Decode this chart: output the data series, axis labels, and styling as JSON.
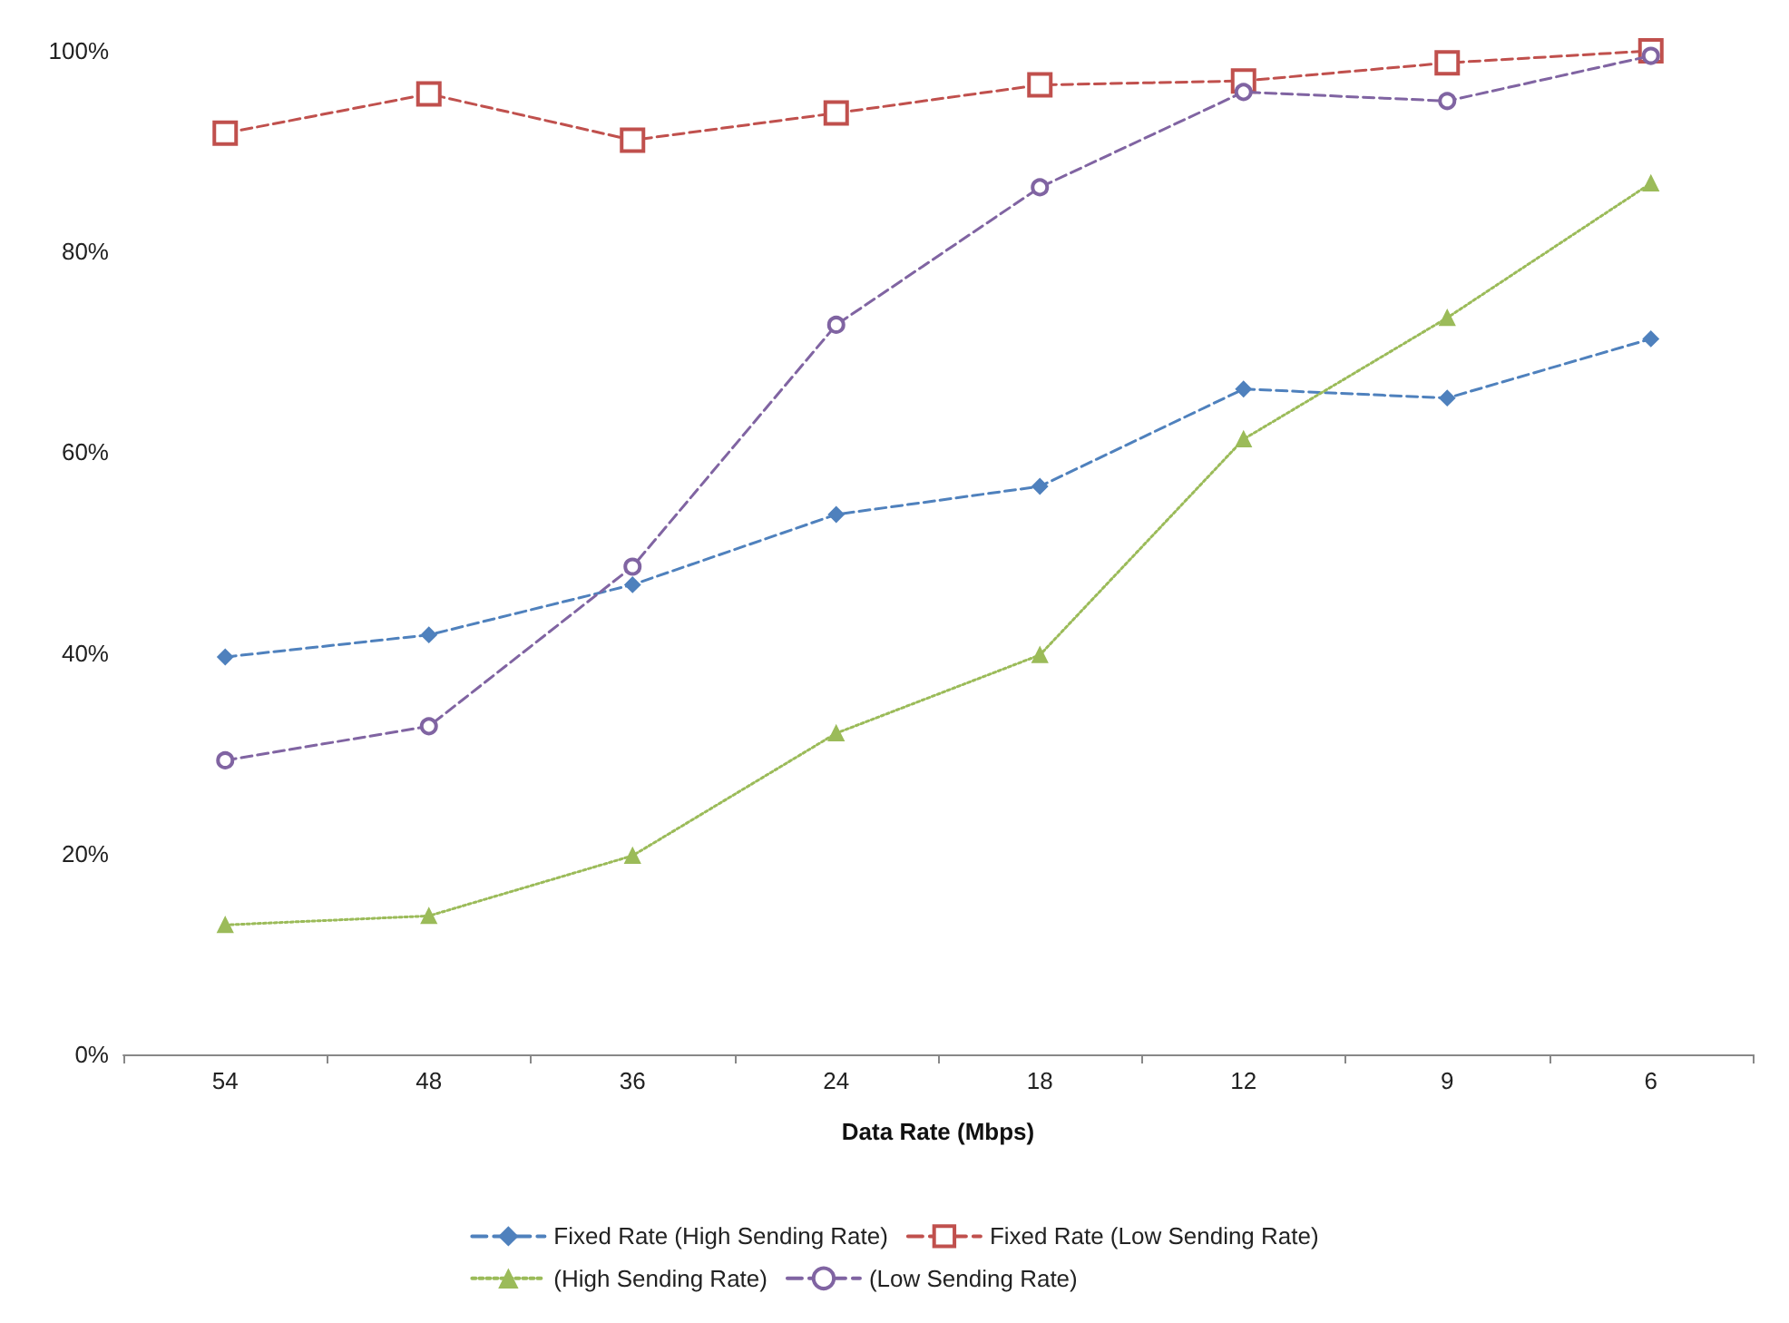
{
  "chart_data": {
    "type": "line",
    "xlabel": "Data Rate (Mbps)",
    "categories": [
      "54",
      "48",
      "36",
      "24",
      "18",
      "12",
      "9",
      "6"
    ],
    "ylim": [
      0,
      100
    ],
    "yticks": [
      {
        "value": 0,
        "label": "0%"
      },
      {
        "value": 20,
        "label": "20%"
      },
      {
        "value": 40,
        "label": "40%"
      },
      {
        "value": 60,
        "label": "60%"
      },
      {
        "value": 80,
        "label": "80%"
      },
      {
        "value": 100,
        "label": "100%"
      }
    ],
    "grid": false,
    "legend": "bottom",
    "series": [
      {
        "name": "Fixed Rate (High Sending Rate)",
        "color": "#4f81bd",
        "marker": "diamond",
        "line_style": "dashed",
        "values": [
          39.6,
          41.8,
          46.8,
          53.8,
          56.6,
          66.3,
          65.4,
          71.3
        ]
      },
      {
        "name": "Fixed Rate (Low Sending Rate)",
        "color": "#c0504d",
        "marker": "square",
        "line_style": "dashed",
        "values": [
          91.8,
          95.7,
          91.1,
          93.8,
          96.6,
          97,
          98.8,
          100
        ]
      },
      {
        "name": "(High Sending Rate)",
        "color": "#9bbb59",
        "marker": "triangle",
        "line_style": "dotted",
        "values": [
          12.9,
          13.8,
          19.8,
          32,
          39.8,
          61.3,
          73.4,
          86.8
        ]
      },
      {
        "name": "(Low Sending Rate)",
        "color": "#8064a2",
        "marker": "circle",
        "line_style": "dashed",
        "values": [
          29.3,
          32.7,
          48.6,
          72.7,
          86.4,
          95.9,
          95,
          99.5
        ]
      }
    ]
  }
}
